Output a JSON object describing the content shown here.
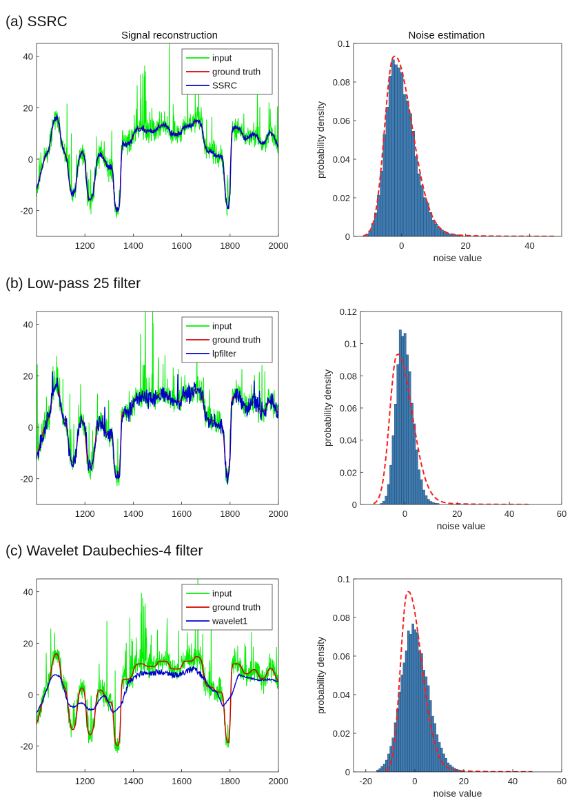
{
  "figure": {
    "col_titles": [
      "Signal reconstruction",
      "Noise estimation"
    ]
  },
  "colors": {
    "input": "#00ee00",
    "ground_truth": "#d40000",
    "estimate": "#0000cc",
    "hist_fill": "#3f7bb0",
    "hist_edge": "#173a5c",
    "fit": "#ff1a1a"
  },
  "chart_data": [
    {
      "id": "a-signal",
      "type": "line",
      "row_title": "(a) SSRC",
      "title": "Signal reconstruction",
      "xlim": [
        1000,
        2000
      ],
      "ylim": [
        -30,
        45
      ],
      "xticks": [
        1200,
        1400,
        1600,
        1800,
        2000
      ],
      "yticks": [
        -20,
        0,
        20,
        40
      ],
      "series": [
        {
          "name": "input",
          "role": "input"
        },
        {
          "name": "ground truth",
          "role": "truth"
        },
        {
          "name": "SSRC",
          "role": "estimate",
          "style": "ssrc"
        }
      ]
    },
    {
      "id": "a-noise",
      "type": "bar",
      "title": "Noise estimation",
      "xlabel": "noise value",
      "ylabel": "probability density",
      "xlim": [
        -15,
        50
      ],
      "ylim": [
        0,
        0.1
      ],
      "xticks": [
        0,
        20,
        40
      ],
      "yticks": [
        0,
        0.02,
        0.04,
        0.06,
        0.08,
        0.1
      ],
      "hist": {
        "center": -2.5,
        "peak": 0.089,
        "sigma_left": 2.8,
        "sigma_right": 5.6,
        "tail_amp": 0.0055,
        "tail_decay": 9,
        "lo": -13,
        "hi": 38,
        "bin": 0.9
      },
      "fit": {
        "center": -2.5,
        "peak": 0.093,
        "sigma_left": 2.8,
        "sigma_right": 5.6,
        "tail_amp": 0.0055,
        "tail_decay": 9,
        "lo": -12,
        "hi": 48
      }
    },
    {
      "id": "b-signal",
      "type": "line",
      "row_title": "(b) Low-pass 25 filter",
      "xlim": [
        1000,
        2000
      ],
      "ylim": [
        -30,
        45
      ],
      "xticks": [
        1200,
        1400,
        1600,
        1800,
        2000
      ],
      "yticks": [
        -20,
        0,
        20,
        40
      ],
      "series": [
        {
          "name": "input",
          "role": "input"
        },
        {
          "name": "ground truth",
          "role": "truth"
        },
        {
          "name": "lpfilter",
          "role": "estimate",
          "style": "lpf"
        }
      ]
    },
    {
      "id": "b-noise",
      "type": "bar",
      "xlabel": "noise value",
      "ylabel": "probability density",
      "xlim": [
        -17,
        60
      ],
      "ylim": [
        0,
        0.12
      ],
      "xticks": [
        0,
        20,
        40,
        60
      ],
      "yticks": [
        0,
        0.02,
        0.04,
        0.06,
        0.08,
        0.1,
        0.12
      ],
      "hist": {
        "center": -1,
        "peak": 0.108,
        "sigma_left": 2.5,
        "sigma_right": 3.6,
        "tail_amp": 0.004,
        "tail_decay": 7,
        "lo": -13,
        "hi": 30,
        "bin": 0.9
      },
      "fit": {
        "center": -3,
        "peak": 0.093,
        "sigma_left": 2.8,
        "sigma_right": 5.6,
        "tail_amp": 0.0055,
        "tail_decay": 9,
        "lo": -12,
        "hi": 48
      }
    },
    {
      "id": "c-signal",
      "type": "line",
      "row_title": "(c) Wavelet Daubechies-4 filter",
      "xlim": [
        1000,
        2000
      ],
      "ylim": [
        -30,
        45
      ],
      "xticks": [
        1200,
        1400,
        1600,
        1800,
        2000
      ],
      "yticks": [
        -20,
        0,
        20,
        40
      ],
      "series": [
        {
          "name": "input",
          "role": "input"
        },
        {
          "name": "ground truth",
          "role": "truth"
        },
        {
          "name": "wavelet1",
          "role": "estimate",
          "style": "wavelet"
        }
      ]
    },
    {
      "id": "c-noise",
      "type": "bar",
      "xlabel": "noise value",
      "ylabel": "probability density",
      "xlim": [
        -25,
        60
      ],
      "ylim": [
        0,
        0.1
      ],
      "xticks": [
        -20,
        0,
        20,
        40,
        60
      ],
      "yticks": [
        0,
        0.02,
        0.04,
        0.06,
        0.08,
        0.1
      ],
      "hist": {
        "center": -1,
        "peak": 0.072,
        "sigma_left": 4.8,
        "sigma_right": 6.2,
        "tail_amp": 0.003,
        "tail_decay": 9,
        "lo": -21,
        "hi": 35,
        "bin": 0.9
      },
      "fit": {
        "center": -3,
        "peak": 0.093,
        "sigma_left": 2.8,
        "sigma_right": 5.6,
        "tail_amp": 0.0055,
        "tail_decay": 9,
        "lo": -12,
        "hi": 48
      }
    }
  ]
}
